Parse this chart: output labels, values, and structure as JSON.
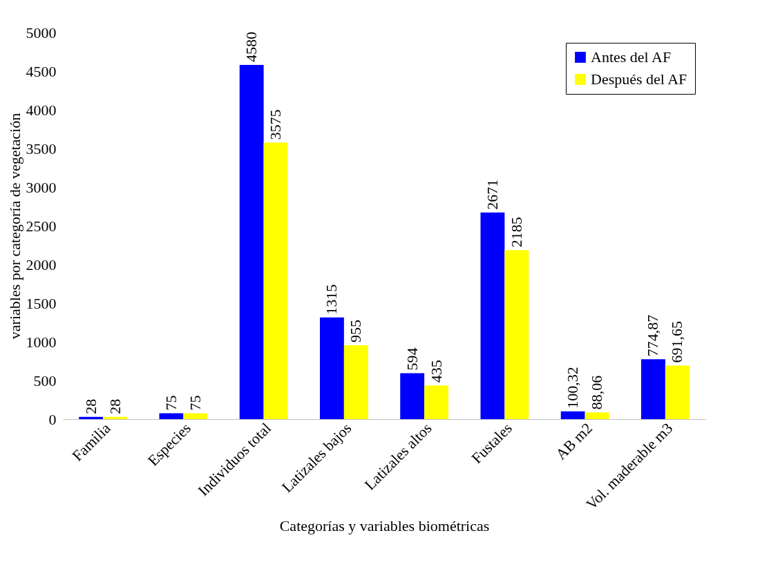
{
  "chart_data": {
    "type": "bar",
    "xlabel": "Categorías y variables biométricas",
    "ylabel": "variables por categoría de vegetación",
    "categories": [
      "Familia",
      "Especies",
      "Individuos total",
      "Latizales bajos",
      "Latizales altos",
      "Fustales",
      "AB m2",
      "Vol. maderable m3"
    ],
    "series": [
      {
        "name": "Antes del AF",
        "color": "#0000ff",
        "values": [
          28,
          75,
          4580,
          1315,
          594,
          2671,
          100.32,
          774.87
        ],
        "value_labels": [
          "28",
          "75",
          "4580",
          "1315",
          "594",
          "2671",
          "100,32",
          "774,87"
        ]
      },
      {
        "name": "Después del AF",
        "color": "#ffff00",
        "values": [
          28,
          75,
          3575,
          955,
          435,
          2185,
          88.06,
          691.65
        ],
        "value_labels": [
          "28",
          "75",
          "3575",
          "955",
          "435",
          "2185",
          "88,06",
          "691,65"
        ]
      }
    ],
    "ylim": [
      0,
      5000
    ],
    "yticks": [
      0,
      500,
      1000,
      1500,
      2000,
      2500,
      3000,
      3500,
      4000,
      4500,
      5000
    ],
    "grid": false,
    "legend": "top right"
  }
}
